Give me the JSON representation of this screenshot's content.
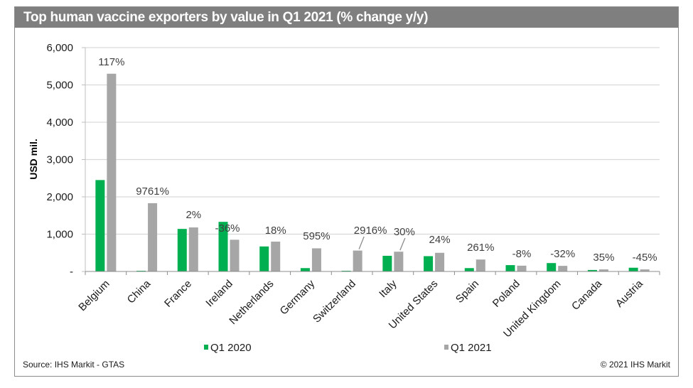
{
  "chart_data": {
    "type": "bar",
    "title": "Top human vaccine exporters by value in Q1 2021 (% change y/y)",
    "xlabel": "",
    "ylabel": "USD mil.",
    "ylim": [
      0,
      6000
    ],
    "yticks": [
      0,
      1000,
      2000,
      3000,
      4000,
      5000,
      6000
    ],
    "ytick_labels": [
      "-",
      "1,000",
      "2,000",
      "3,000",
      "4,000",
      "5,000",
      "6,000"
    ],
    "grid": true,
    "legend_position": "bottom",
    "categories": [
      "Belgium",
      "China",
      "France",
      "Ireland",
      "Netherlands",
      "Germany",
      "Switzerland",
      "Italy",
      "United States",
      "Spain",
      "Poland",
      "United Kingdom",
      "Canada",
      "Austria"
    ],
    "series": [
      {
        "name": "Q1 2020",
        "color": "#00b050",
        "values": [
          2450,
          19,
          1140,
          1330,
          670,
          90,
          19,
          420,
          410,
          90,
          170,
          225,
          40,
          100
        ]
      },
      {
        "name": "Q1 2021",
        "color": "#a6a6a6",
        "values": [
          5300,
          1830,
          1180,
          850,
          800,
          620,
          560,
          530,
          500,
          320,
          155,
          150,
          55,
          55
        ]
      }
    ],
    "annotations": [
      "117%",
      "9761%",
      "2%",
      "-36%",
      "18%",
      "595%",
      "2916%",
      "30%",
      "24%",
      "261%",
      "-8%",
      "-32%",
      "35%",
      "-45%"
    ]
  },
  "footer": {
    "source": "Source: IHS Markit - GTAS",
    "copyright": "© 2021 IHS Markit"
  }
}
